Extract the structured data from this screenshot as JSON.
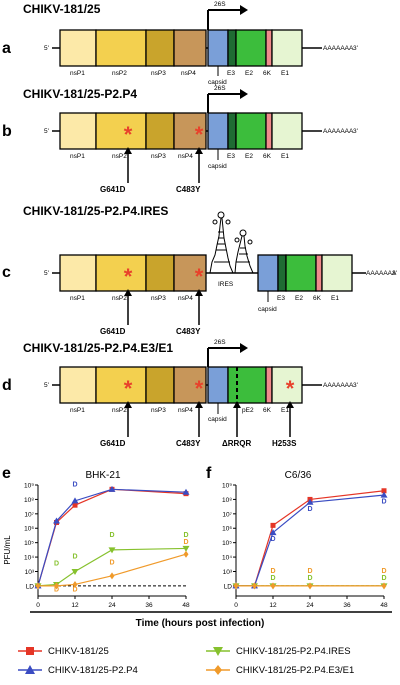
{
  "panels": [
    {
      "letter": "a",
      "title": "CHIKV-181/25",
      "promoter": "26S",
      "ns_labels": [
        "nsP1",
        "nsP2",
        "nsP3",
        "nsP4"
      ],
      "s_labels": [
        "E3",
        "E2",
        "6K",
        "E1"
      ],
      "capsid": "capsid",
      "five": "5'",
      "three": "3'",
      "polyA": "AAAAAAA"
    },
    {
      "letter": "b",
      "title": "CHIKV-181/25-P2.P4",
      "promoter": "26S",
      "ns_labels": [
        "nsP1",
        "nsP2",
        "nsP3",
        "nsP4"
      ],
      "s_labels": [
        "E3",
        "E2",
        "6K",
        "E1"
      ],
      "capsid": "capsid",
      "five": "5'",
      "three": "3'",
      "polyA": "AAAAAAA",
      "mutations": [
        "G641D",
        "C483Y"
      ]
    },
    {
      "letter": "c",
      "title": "CHIKV-181/25-P2.P4.IRES",
      "ires": "IRES",
      "ns_labels": [
        "nsP1",
        "nsP2",
        "nsP3",
        "nsP4"
      ],
      "s_labels": [
        "E3",
        "E2",
        "6K",
        "E1"
      ],
      "capsid": "capsid",
      "five": "5'",
      "three": "3'",
      "polyA": "AAAAAAA",
      "mutations": [
        "G641D",
        "C483Y"
      ]
    },
    {
      "letter": "d",
      "title": "CHIKV-181/25-P2.P4.E3/E1",
      "promoter": "26S",
      "ns_labels": [
        "nsP1",
        "nsP2",
        "nsP3",
        "nsP4"
      ],
      "s_labels": [
        "pE2",
        "6K",
        "E1"
      ],
      "capsid": "capsid",
      "five": "5'",
      "three": "3'",
      "polyA": "AAAAAAA",
      "mutations": [
        "G641D",
        "C483Y",
        "ΔRRQR",
        "H253S"
      ]
    }
  ],
  "colors": {
    "nsP1": "#fce9a8",
    "nsP2": "#f3d04f",
    "nsP3": "#c9a42c",
    "nsP4": "#c7965a",
    "capsid": "#7a9fd8",
    "E3": "#1f6b33",
    "E2": "#3cbd3c",
    "6K": "#f08b8b",
    "E1": "#e6f5d2",
    "star": "#e8412b",
    "red": "#e53526",
    "blue": "#3a4cc2",
    "green": "#86c12d",
    "orange": "#f09a2a"
  },
  "chart_data": [
    {
      "type": "line",
      "panel": "e",
      "title": "BHK-21",
      "ylabel": "PFU/mL",
      "xlim": [
        0,
        48
      ],
      "ylim_log10": [
        1.3,
        9
      ],
      "x_ticks": [
        "0",
        "12",
        "24",
        "36",
        "48"
      ],
      "y_ticks": [
        "LD",
        "10³",
        "10⁴",
        "10⁵",
        "10⁶",
        "10⁷",
        "10⁸",
        "10⁹"
      ],
      "detection_limit_label": "LD",
      "series": [
        {
          "name": "CHIKV-181/25",
          "color": "red",
          "marker": "square",
          "x": [
            0,
            6,
            12,
            24,
            48
          ],
          "log10": [
            2.0,
            6.4,
            7.6,
            8.7,
            8.4
          ]
        },
        {
          "name": "CHIKV-181/25-P2.P4",
          "color": "blue",
          "marker": "triangle-up",
          "x": [
            0,
            6,
            12,
            24,
            48
          ],
          "log10": [
            2.0,
            6.5,
            7.9,
            8.7,
            8.5
          ]
        },
        {
          "name": "CHIKV-181/25-P2.P4.IRES",
          "color": "green",
          "marker": "triangle-down",
          "x": [
            0,
            6,
            12,
            24,
            48
          ],
          "log10": [
            2.0,
            2.1,
            3.0,
            4.5,
            4.6
          ]
        },
        {
          "name": "CHIKV-181/25-P2.P4.E3/E1",
          "color": "orange",
          "marker": "diamond",
          "x": [
            0,
            6,
            12,
            24,
            48
          ],
          "log10": [
            2.0,
            2.0,
            2.1,
            2.7,
            4.2
          ]
        }
      ],
      "d_labels": [
        {
          "text": "D",
          "x": 12,
          "log10": 8.9,
          "color": "blue"
        },
        {
          "text": "D",
          "x": 24,
          "log10": 5.4,
          "color": "green"
        },
        {
          "text": "D",
          "x": 48,
          "log10": 5.4,
          "color": "green"
        },
        {
          "text": "D",
          "x": 6,
          "log10": 3.4,
          "color": "green"
        },
        {
          "text": "D",
          "x": 12,
          "log10": 3.9,
          "color": "green"
        },
        {
          "text": "D",
          "x": 24,
          "log10": 3.5,
          "color": "orange"
        },
        {
          "text": "D",
          "x": 48,
          "log10": 4.9,
          "color": "orange"
        },
        {
          "text": "D",
          "x": 6,
          "log10": 1.6,
          "color": "orange"
        },
        {
          "text": "D",
          "x": 12,
          "log10": 1.6,
          "color": "orange"
        }
      ]
    },
    {
      "type": "line",
      "panel": "f",
      "title": "C6/36",
      "xlim": [
        0,
        48
      ],
      "ylim_log10": [
        1.3,
        9
      ],
      "x_ticks": [
        "0",
        "12",
        "24",
        "36",
        "48"
      ],
      "y_ticks": [
        "LD",
        "10³",
        "10⁴",
        "10⁵",
        "10⁶",
        "10⁷",
        "10⁸",
        "10⁹"
      ],
      "detection_limit_label": "LD",
      "series": [
        {
          "name": "CHIKV-181/25",
          "color": "red",
          "marker": "square",
          "x": [
            0,
            6,
            12,
            24,
            48
          ],
          "log10": [
            2.0,
            2.0,
            6.2,
            8.0,
            8.6
          ]
        },
        {
          "name": "CHIKV-181/25-P2.P4",
          "color": "blue",
          "marker": "triangle-up",
          "x": [
            0,
            6,
            12,
            24,
            48
          ],
          "log10": [
            2.0,
            2.0,
            5.7,
            7.8,
            8.3
          ]
        },
        {
          "name": "CHIKV-181/25-P2.P4.IRES",
          "color": "green",
          "marker": "triangle-down",
          "x": [
            0,
            6,
            12,
            24,
            48
          ],
          "log10": [
            2.0,
            2.0,
            2.0,
            2.0,
            2.0
          ]
        },
        {
          "name": "CHIKV-181/25-P2.P4.E3/E1",
          "color": "orange",
          "marker": "diamond",
          "x": [
            0,
            6,
            12,
            24,
            48
          ],
          "log10": [
            2.0,
            2.0,
            2.0,
            2.0,
            2.0
          ]
        }
      ],
      "d_labels": [
        {
          "text": "D",
          "x": 12,
          "log10": 5.1,
          "color": "blue"
        },
        {
          "text": "D",
          "x": 24,
          "log10": 7.2,
          "color": "blue"
        },
        {
          "text": "D",
          "x": 48,
          "log10": 7.7,
          "color": "blue"
        },
        {
          "text": "D",
          "x": 12,
          "log10": 2.9,
          "color": "orange"
        },
        {
          "text": "D",
          "x": 24,
          "log10": 2.9,
          "color": "orange"
        },
        {
          "text": "D",
          "x": 48,
          "log10": 2.9,
          "color": "orange"
        },
        {
          "text": "D",
          "x": 12,
          "log10": 2.4,
          "color": "green"
        },
        {
          "text": "D",
          "x": 24,
          "log10": 2.4,
          "color": "green"
        },
        {
          "text": "D",
          "x": 48,
          "log10": 2.4,
          "color": "green"
        }
      ]
    }
  ],
  "x_axis_title": "Time (hours post infection)",
  "legend": [
    {
      "label": "CHIKV-181/25",
      "color": "red",
      "marker": "square"
    },
    {
      "label": "CHIKV-181/25-P2.P4",
      "color": "blue",
      "marker": "triangle-up"
    },
    {
      "label": "CHIKV-181/25-P2.P4.IRES",
      "color": "green",
      "marker": "triangle-down"
    },
    {
      "label": "CHIKV-181/25-P2.P4.E3/E1",
      "color": "orange",
      "marker": "diamond"
    }
  ]
}
